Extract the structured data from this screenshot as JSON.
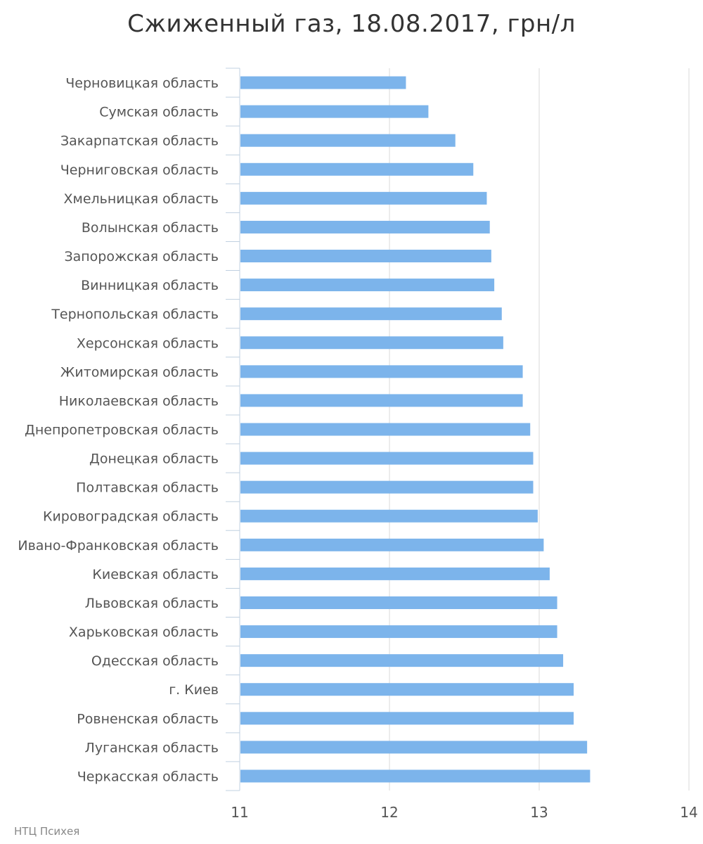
{
  "title": "Сжиженный газ, 18.08.2017, грн/л",
  "credit": "НТЦ Психея",
  "colors": {
    "bar": "#7cb4eb",
    "grid": "#d8d8d8",
    "axis": "#c0d0e0",
    "text": "#555555"
  },
  "chart_data": {
    "type": "bar",
    "orientation": "horizontal",
    "title": "Сжиженный газ, 18.08.2017, грн/л",
    "xlim": [
      11,
      14
    ],
    "x_ticks": [
      "11",
      "12",
      "13",
      "14"
    ],
    "grid": true,
    "legend": false,
    "categories": [
      "Черновицкая область",
      "Сумская область",
      "Закарпатская область",
      "Черниговская область",
      "Хмельницкая область",
      "Волынская область",
      "Запорожская область",
      "Винницкая область",
      "Тернопольская область",
      "Херсонская область",
      "Житомирская область",
      "Николаевская область",
      "Днепропетровская область",
      "Донецкая область",
      "Полтавская область",
      "Кировоградская область",
      "Ивано-Франковская область",
      "Киевская область",
      "Львовская область",
      "Харьковская область",
      "Одесская область",
      "г. Киев",
      "Ровненская область",
      "Луганская область",
      "Черкасская область"
    ],
    "values": [
      12.11,
      12.26,
      12.44,
      12.56,
      12.65,
      12.67,
      12.68,
      12.7,
      12.75,
      12.76,
      12.89,
      12.89,
      12.94,
      12.96,
      12.96,
      12.99,
      13.03,
      13.07,
      13.12,
      13.12,
      13.16,
      13.23,
      13.23,
      13.32,
      13.34
    ]
  }
}
